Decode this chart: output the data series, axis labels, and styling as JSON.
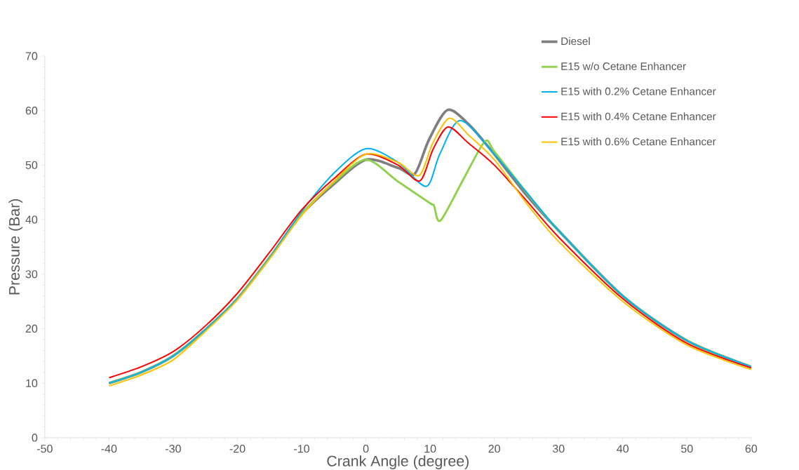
{
  "chart_data": {
    "type": "line",
    "xlabel": "Crank Angle (degree)",
    "ylabel": "Pressure (Bar)",
    "xlim": [
      -50,
      60
    ],
    "ylim": [
      0,
      70
    ],
    "xticks": [
      -50,
      -40,
      -30,
      -20,
      -10,
      0,
      10,
      20,
      30,
      40,
      50,
      60
    ],
    "yticks": [
      0,
      10,
      20,
      30,
      40,
      50,
      60,
      70
    ],
    "grid": false,
    "legend": "top right",
    "marker": "none",
    "line_style": "solid",
    "series": [
      {
        "name": "Diesel",
        "color": "#7f7f7f",
        "x": [
          -40,
          -35,
          -30,
          -25,
          -20,
          -15,
          -10,
          -5,
          0,
          5,
          7.6,
          9.8,
          12.7,
          16,
          20,
          25,
          30,
          40,
          50,
          60
        ],
        "values": [
          10,
          12,
          15,
          19.8,
          25.5,
          33,
          41,
          46.5,
          51,
          49.5,
          48.4,
          54.6,
          60.1,
          57.5,
          52,
          44.5,
          38,
          26,
          17.8,
          13
        ]
      },
      {
        "name": "E15 w/o Cetane Enhancer",
        "color": "#92d050",
        "x": [
          -40,
          -35,
          -30,
          -25,
          -20,
          -15,
          -10,
          -5,
          0,
          5,
          10,
          10.6,
          11.6,
          15,
          18.5,
          20,
          25,
          30,
          40,
          50,
          60
        ],
        "values": [
          10,
          12,
          15,
          19.8,
          25.5,
          33,
          41,
          46.8,
          51,
          47,
          43,
          42.6,
          39.8,
          47,
          54.3,
          52.5,
          45,
          38,
          26,
          17.8,
          13
        ]
      },
      {
        "name": "E15 with 0.2% Cetane Enhancer",
        "color": "#00b0f0",
        "x": [
          -40,
          -35,
          -30,
          -25,
          -20,
          -15,
          -10,
          -5,
          0,
          5,
          9.4,
          11.5,
          14.7,
          20,
          25,
          30,
          40,
          50,
          60
        ],
        "values": [
          10,
          12,
          15,
          19.8,
          25.5,
          33,
          41.5,
          48.5,
          53,
          50.5,
          46.1,
          52,
          58.2,
          52,
          45,
          38,
          26,
          17.8,
          13
        ]
      },
      {
        "name": "E15 with 0.4% Cetane Enhancer",
        "color": "#ff0000",
        "x": [
          -40,
          -35,
          -30,
          -25,
          -20,
          -15,
          -10,
          -5,
          0,
          5,
          8.4,
          10.5,
          12.8,
          16,
          20,
          25,
          30,
          40,
          50,
          60
        ],
        "values": [
          11,
          13,
          15.8,
          20.5,
          26.5,
          34,
          41.8,
          47.5,
          52,
          50,
          47.1,
          53,
          57,
          54,
          50,
          43.5,
          36.8,
          25.5,
          17.3,
          12.8
        ]
      },
      {
        "name": "E15 with 0.6% Cetane Enhancer",
        "color": "#ffc000",
        "x": [
          -40,
          -35,
          -30,
          -25,
          -20,
          -15,
          -10,
          -5,
          0,
          5,
          8.3,
          10.4,
          13,
          16,
          20,
          25,
          30,
          40,
          50,
          60
        ],
        "values": [
          9.5,
          11.5,
          14.3,
          19.5,
          25.3,
          32.8,
          40.8,
          47,
          52,
          50.5,
          48.1,
          54,
          58.6,
          55.5,
          51,
          43,
          36,
          25,
          17,
          12.5
        ]
      }
    ]
  }
}
